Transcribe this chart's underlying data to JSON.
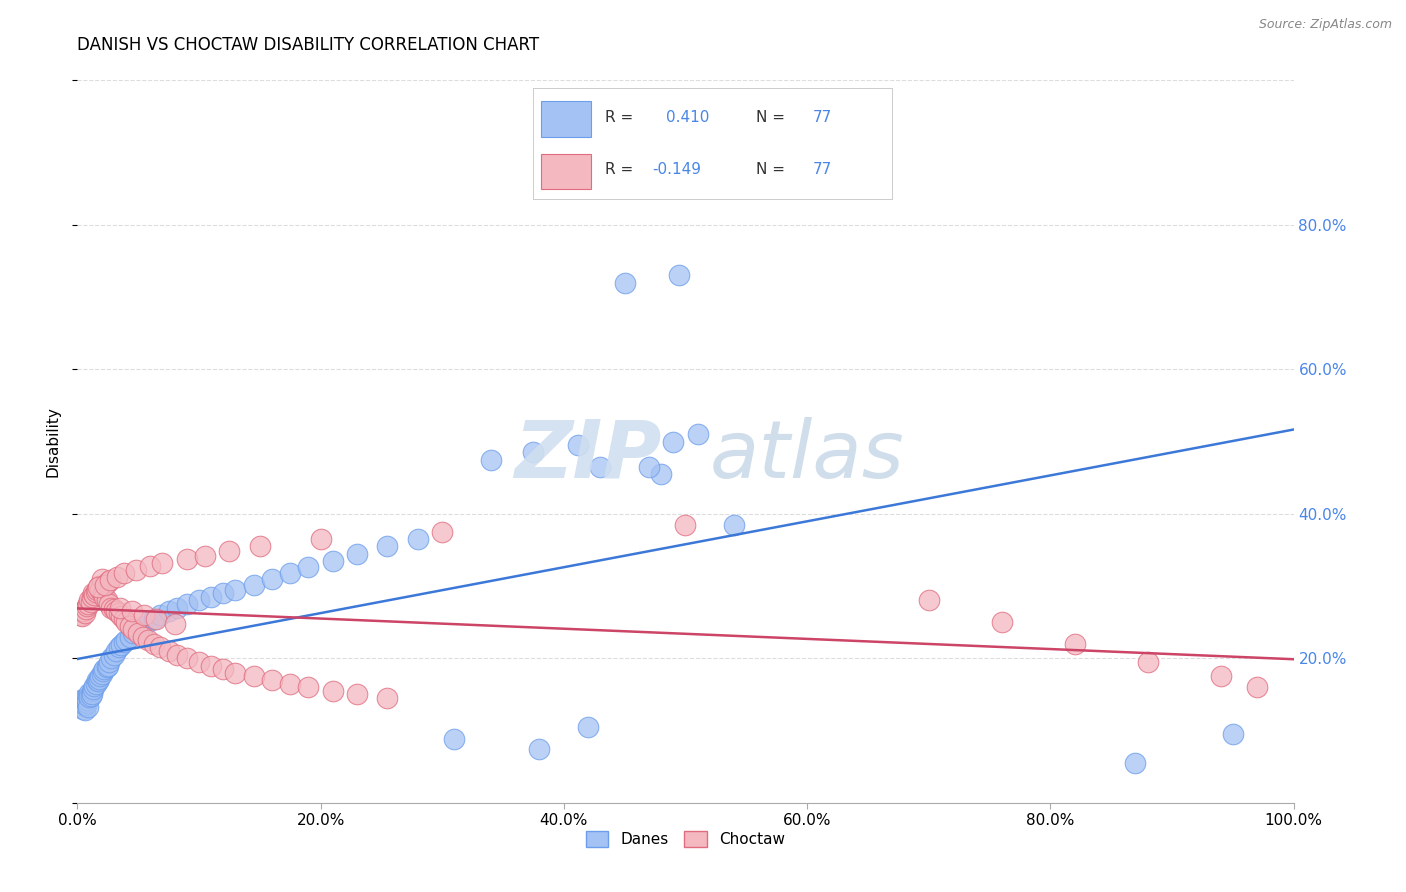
{
  "title": "DANISH VS CHOCTAW DISABILITY CORRELATION CHART",
  "source": "Source: ZipAtlas.com",
  "ylabel": "Disability",
  "blue_color": "#a4c2f4",
  "blue_edge_color": "#6d9eeb",
  "pink_color": "#f4b8c1",
  "pink_edge_color": "#e06c7e",
  "blue_line_color": "#3c78d8",
  "pink_line_color": "#cc4466",
  "right_tick_color": "#4a86e8",
  "watermark_color": "#d0dff0",
  "watermark_atlas_color": "#c8d8e8",
  "background_color": "#ffffff",
  "grid_color": "#dddddd",
  "R_danes": 0.41,
  "R_choctaw": -0.149,
  "N": 77,
  "xlim": [
    0.0,
    1.0
  ],
  "ylim_plot": [
    0.0,
    1.0
  ],
  "danes_x": [
    0.002,
    0.003,
    0.004,
    0.004,
    0.005,
    0.005,
    0.006,
    0.006,
    0.007,
    0.007,
    0.008,
    0.008,
    0.009,
    0.009,
    0.01,
    0.01,
    0.011,
    0.012,
    0.012,
    0.013,
    0.014,
    0.015,
    0.016,
    0.017,
    0.018,
    0.019,
    0.02,
    0.021,
    0.022,
    0.024,
    0.025,
    0.026,
    0.028,
    0.03,
    0.032,
    0.034,
    0.036,
    0.038,
    0.04,
    0.043,
    0.046,
    0.05,
    0.054,
    0.058,
    0.063,
    0.068,
    0.075,
    0.082,
    0.09,
    0.1,
    0.11,
    0.12,
    0.13,
    0.145,
    0.16,
    0.175,
    0.19,
    0.21,
    0.23,
    0.255,
    0.28,
    0.31,
    0.34,
    0.375,
    0.412,
    0.45,
    0.495,
    0.54,
    0.49,
    0.51,
    0.48,
    0.47,
    0.42,
    0.87,
    0.43,
    0.38,
    0.95
  ],
  "danes_y": [
    0.14,
    0.138,
    0.142,
    0.135,
    0.13,
    0.143,
    0.128,
    0.136,
    0.14,
    0.145,
    0.138,
    0.142,
    0.148,
    0.133,
    0.152,
    0.146,
    0.148,
    0.155,
    0.15,
    0.158,
    0.162,
    0.165,
    0.17,
    0.168,
    0.172,
    0.175,
    0.178,
    0.182,
    0.185,
    0.188,
    0.19,
    0.195,
    0.2,
    0.205,
    0.21,
    0.215,
    0.218,
    0.222,
    0.226,
    0.23,
    0.235,
    0.24,
    0.245,
    0.25,
    0.255,
    0.26,
    0.265,
    0.27,
    0.275,
    0.28,
    0.285,
    0.29,
    0.295,
    0.302,
    0.31,
    0.318,
    0.326,
    0.335,
    0.345,
    0.355,
    0.365,
    0.088,
    0.475,
    0.485,
    0.495,
    0.72,
    0.73,
    0.385,
    0.5,
    0.51,
    0.455,
    0.465,
    0.105,
    0.055,
    0.465,
    0.075,
    0.095
  ],
  "choctaw_x": [
    0.003,
    0.004,
    0.005,
    0.006,
    0.007,
    0.008,
    0.009,
    0.01,
    0.011,
    0.012,
    0.013,
    0.014,
    0.015,
    0.016,
    0.018,
    0.019,
    0.021,
    0.022,
    0.024,
    0.026,
    0.028,
    0.03,
    0.032,
    0.034,
    0.036,
    0.038,
    0.04,
    0.043,
    0.046,
    0.05,
    0.054,
    0.058,
    0.063,
    0.068,
    0.075,
    0.082,
    0.09,
    0.1,
    0.11,
    0.12,
    0.13,
    0.145,
    0.16,
    0.175,
    0.19,
    0.21,
    0.23,
    0.255,
    0.035,
    0.045,
    0.055,
    0.065,
    0.08,
    0.02,
    0.025,
    0.017,
    0.023,
    0.027,
    0.033,
    0.038,
    0.048,
    0.06,
    0.07,
    0.09,
    0.105,
    0.125,
    0.15,
    0.2,
    0.3,
    0.5,
    0.7,
    0.76,
    0.82,
    0.88,
    0.94,
    0.97
  ],
  "choctaw_y": [
    0.26,
    0.258,
    0.265,
    0.262,
    0.268,
    0.272,
    0.275,
    0.28,
    0.278,
    0.285,
    0.29,
    0.288,
    0.292,
    0.295,
    0.3,
    0.295,
    0.29,
    0.285,
    0.28,
    0.275,
    0.27,
    0.268,
    0.265,
    0.262,
    0.258,
    0.255,
    0.25,
    0.245,
    0.24,
    0.235,
    0.23,
    0.225,
    0.22,
    0.215,
    0.21,
    0.205,
    0.2,
    0.195,
    0.19,
    0.185,
    0.18,
    0.175,
    0.17,
    0.165,
    0.16,
    0.155,
    0.15,
    0.145,
    0.27,
    0.265,
    0.26,
    0.255,
    0.248,
    0.31,
    0.305,
    0.298,
    0.302,
    0.308,
    0.312,
    0.318,
    0.322,
    0.328,
    0.332,
    0.338,
    0.342,
    0.348,
    0.355,
    0.365,
    0.375,
    0.385,
    0.28,
    0.25,
    0.22,
    0.195,
    0.175,
    0.16
  ]
}
